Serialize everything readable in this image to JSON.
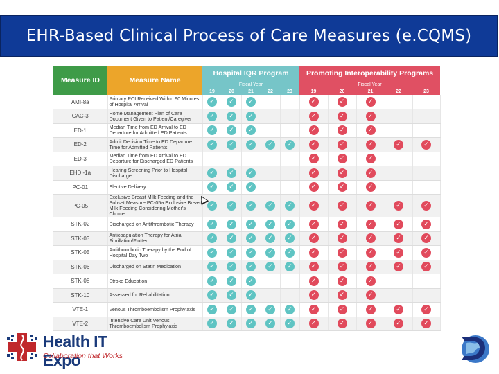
{
  "title": "EHR-Based Clinical Process of Care Measures (e.CQMS)",
  "table": {
    "col_measure_id": "Measure ID",
    "col_measure_name": "Measure Name",
    "group_iqr": "Hospital IQR Program",
    "group_pi": "Promoting Interoperability Programs",
    "fiscal_year_label": "Fiscal Year",
    "iqr_years": [
      "19",
      "20",
      "21",
      "22",
      "23"
    ],
    "pi_years": [
      "19",
      "20",
      "21",
      "22",
      "23"
    ],
    "rows": [
      {
        "id": "AMI-8a",
        "name": "Primary PCI Received Within 90 Minutes of Hospital Arrival",
        "iqr": [
          1,
          1,
          1,
          0,
          0
        ],
        "pi": [
          1,
          1,
          1,
          0,
          0
        ]
      },
      {
        "id": "CAC-3",
        "name": "Home Management Plan of Care Document Given to Patient/Caregiver",
        "iqr": [
          1,
          1,
          1,
          0,
          0
        ],
        "pi": [
          1,
          1,
          1,
          0,
          0
        ]
      },
      {
        "id": "ED-1",
        "name": "Median Time from ED Arrival to ED Departure for Admitted ED Patients",
        "iqr": [
          1,
          1,
          1,
          0,
          0
        ],
        "pi": [
          1,
          1,
          1,
          0,
          0
        ]
      },
      {
        "id": "ED-2",
        "name": "Admit Decision Time to ED Departure Time for Admitted Patients",
        "iqr": [
          1,
          1,
          1,
          1,
          1
        ],
        "pi": [
          1,
          1,
          1,
          1,
          1
        ]
      },
      {
        "id": "ED-3",
        "name": "Median Time from ED Arrival to ED Departure for Discharged ED Patients",
        "iqr": [
          0,
          0,
          0,
          0,
          0
        ],
        "pi": [
          1,
          1,
          1,
          0,
          0
        ]
      },
      {
        "id": "EHDI-1a",
        "name": "Hearing Screening Prior to Hospital Discharge",
        "iqr": [
          1,
          1,
          1,
          0,
          0
        ],
        "pi": [
          1,
          1,
          1,
          0,
          0
        ]
      },
      {
        "id": "PC-01",
        "name": "Elective Delivery",
        "iqr": [
          1,
          1,
          1,
          0,
          0
        ],
        "pi": [
          1,
          1,
          1,
          0,
          0
        ]
      },
      {
        "id": "PC-05",
        "name": "Exclusive Breast Milk Feeding and the Subset Measure PC-05a Exclusive Breast Milk Feeding Considering Mother's Choice",
        "iqr": [
          1,
          1,
          1,
          1,
          1
        ],
        "pi": [
          1,
          1,
          1,
          1,
          1
        ]
      },
      {
        "id": "STK-02",
        "name": "Discharged on Antithrombotic Therapy",
        "iqr": [
          1,
          1,
          1,
          1,
          1
        ],
        "pi": [
          1,
          1,
          1,
          1,
          1
        ]
      },
      {
        "id": "STK-03",
        "name": "Anticoagulation Therapy for Atrial Fibrillation/Flutter",
        "iqr": [
          1,
          1,
          1,
          1,
          1
        ],
        "pi": [
          1,
          1,
          1,
          1,
          1
        ]
      },
      {
        "id": "STK-05",
        "name": "Antithrombotic Therapy by the End of Hospital Day Two",
        "iqr": [
          1,
          1,
          1,
          1,
          1
        ],
        "pi": [
          1,
          1,
          1,
          1,
          1
        ]
      },
      {
        "id": "STK-06",
        "name": "Discharged on Statin Medication",
        "iqr": [
          1,
          1,
          1,
          1,
          1
        ],
        "pi": [
          1,
          1,
          1,
          1,
          1
        ]
      },
      {
        "id": "STK-08",
        "name": "Stroke Education",
        "iqr": [
          1,
          1,
          1,
          0,
          0
        ],
        "pi": [
          1,
          1,
          1,
          0,
          0
        ]
      },
      {
        "id": "STK-10",
        "name": "Assessed for Rehabilitation",
        "iqr": [
          1,
          1,
          1,
          0,
          0
        ],
        "pi": [
          1,
          1,
          1,
          0,
          0
        ]
      },
      {
        "id": "VTE-1",
        "name": "Venous Thromboembolism Prophylaxis",
        "iqr": [
          1,
          1,
          1,
          1,
          1
        ],
        "pi": [
          1,
          1,
          1,
          1,
          1
        ]
      },
      {
        "id": "VTE-2",
        "name": "Intensive Care Unit Venous Thromboembolism Prophylaxis",
        "iqr": [
          1,
          1,
          1,
          1,
          1
        ],
        "pi": [
          1,
          1,
          1,
          1,
          1
        ]
      }
    ]
  },
  "logo_left": {
    "title": "Health IT Expo",
    "tagline": "Collaboration that Works"
  },
  "colors": {
    "title_bg": "#0f3a97",
    "id_header": "#3e9b48",
    "name_header": "#eca52a",
    "iqr_header": "#76c5c8",
    "pi_header": "#e05063",
    "check_teal": "#5fc4c3",
    "check_red": "#e14a5c"
  }
}
